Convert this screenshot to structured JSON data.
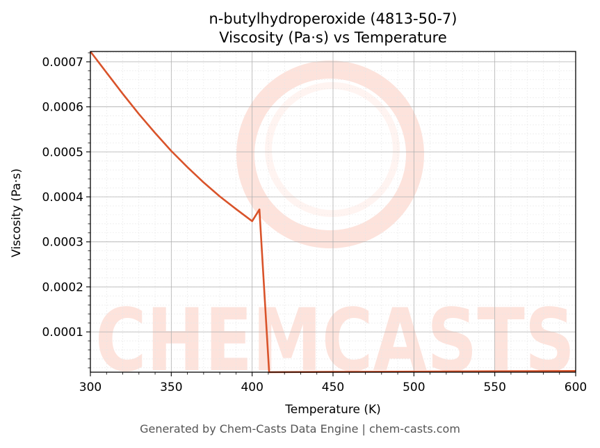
{
  "chart_data": {
    "type": "line",
    "title_line1": "n-butylhydroperoxide (4813-50-7)",
    "title_line2": "Viscosity (Pa·s) vs Temperature",
    "xlabel": "Temperature (K)",
    "ylabel": "Viscosity (Pa·s)",
    "xlim": [
      300,
      600
    ],
    "ylim": [
      1.05e-05,
      0.000723
    ],
    "xticks": [
      300,
      350,
      400,
      450,
      500,
      550,
      600
    ],
    "xtick_labels": [
      "300",
      "350",
      "400",
      "450",
      "500",
      "550",
      "600"
    ],
    "yticks": [
      0.0001,
      0.0002,
      0.0003,
      0.0004,
      0.0005,
      0.0006,
      0.0007
    ],
    "ytick_labels": [
      "0.0001",
      "0.0002",
      "0.0003",
      "0.0004",
      "0.0005",
      "0.0006",
      "0.0007"
    ],
    "grid": true,
    "line_color": "#d9532a",
    "series": [
      {
        "x": [
          300,
          310,
          320,
          330,
          340,
          350,
          360,
          370,
          380,
          390,
          400,
          404.5,
          410.5,
          450,
          500,
          550,
          600
        ],
        "y": [
          0.000723,
          0.000676,
          0.000629,
          0.000584,
          0.000542,
          0.000502,
          0.000466,
          0.000432,
          0.000401,
          0.000373,
          0.000346,
          0.000372,
          1.05e-05,
          1.11e-05,
          1.18e-05,
          1.25e-05,
          1.32e-05
        ]
      }
    ]
  },
  "watermark": {
    "text": "CHEMCASTS",
    "color": "#fde3dc"
  },
  "footer": "Generated by Chem-Casts Data Engine | chem-casts.com"
}
